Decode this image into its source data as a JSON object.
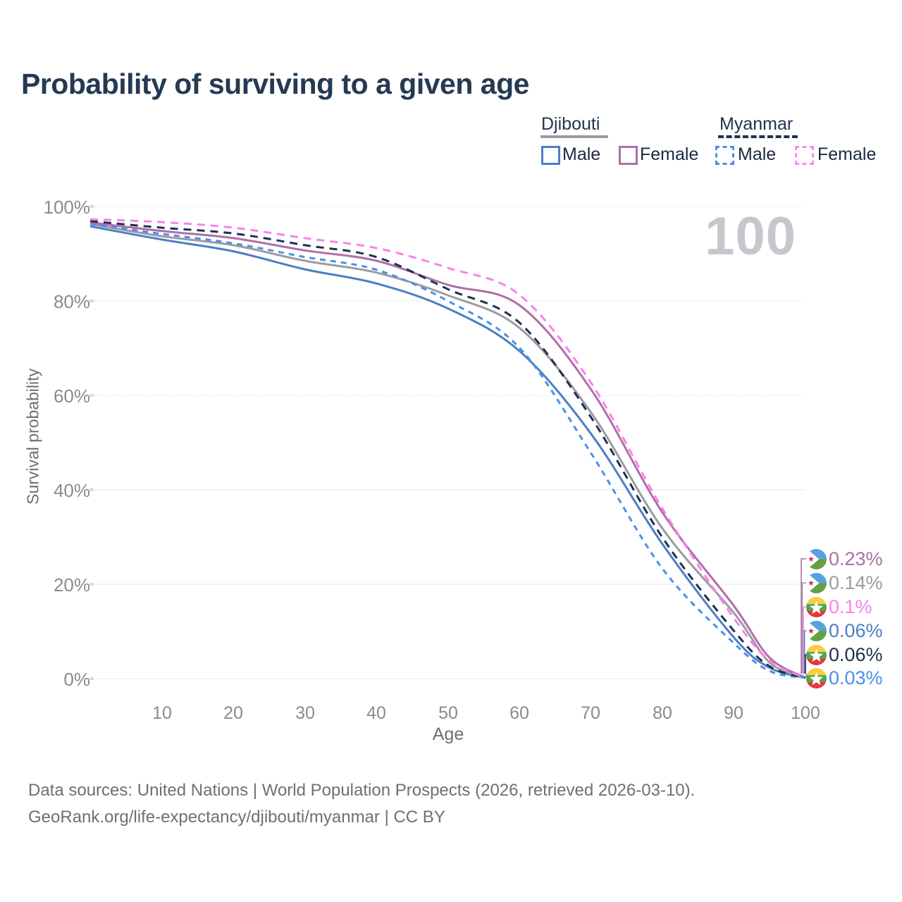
{
  "title": "Probability of surviving to a given age",
  "legend": {
    "groups": [
      {
        "country": "Djibouti",
        "line_style": "solid",
        "underline_color": "#9b9ba1",
        "items": [
          {
            "label": "Male",
            "line_style": "solid",
            "color": "#4d7ec5"
          },
          {
            "label": "Female",
            "line_style": "solid",
            "color": "#ae6fa8"
          }
        ]
      },
      {
        "country": "Myanmar",
        "line_style": "dashed",
        "underline_color": "#20304c",
        "items": [
          {
            "label": "Male",
            "line_style": "dashed",
            "color": "#4a90e8"
          },
          {
            "label": "Female",
            "line_style": "dashed",
            "color": "#fb8df0"
          }
        ]
      }
    ]
  },
  "axes": {
    "y_label": "Survival probability",
    "y_ticks": [
      "100%",
      "80%",
      "60%",
      "40%",
      "20%",
      "0%"
    ],
    "y_tick_values": [
      100,
      80,
      60,
      40,
      20,
      0
    ],
    "x_ticks": [
      "10",
      "20",
      "30",
      "40",
      "50",
      "60",
      "70",
      "80",
      "90",
      "100"
    ],
    "x_tick_values": [
      10,
      20,
      30,
      40,
      50,
      60,
      70,
      80,
      90,
      100
    ],
    "x_label": "Age"
  },
  "watermark": "100",
  "chart_data": {
    "type": "line",
    "title": "Probability of surviving to a given age",
    "xlabel": "Age",
    "ylabel": "Survival probability",
    "xlim": [
      0,
      100
    ],
    "ylim_percent": [
      0,
      100
    ],
    "grid": "horizontal",
    "x": [
      0,
      10,
      20,
      30,
      40,
      50,
      60,
      70,
      80,
      90,
      95,
      100
    ],
    "series": [
      {
        "name": "Djibouti Male",
        "country": "Djibouti",
        "sex": "Male",
        "line_style": "solid",
        "color": "#4d7ec5",
        "values_percent": [
          95.8,
          93.0,
          90.5,
          86.7,
          83.7,
          78.4,
          69.4,
          51.9,
          28.5,
          8.7,
          2.3,
          0.06
        ]
      },
      {
        "name": "Djibouti",
        "country": "Djibouti",
        "sex": "Both sexes",
        "line_style": "solid",
        "color": "#9b9ba1",
        "values_percent": [
          96.3,
          93.7,
          91.8,
          88.5,
          86.0,
          81.2,
          74.3,
          56.4,
          31.8,
          13.9,
          3.4,
          0.14
        ]
      },
      {
        "name": "Djibouti Female",
        "country": "Djibouti",
        "sex": "Female",
        "line_style": "solid",
        "color": "#ae6fa8",
        "values_percent": [
          96.6,
          94.8,
          93.3,
          90.7,
          88.5,
          83.4,
          79.1,
          61.3,
          35.2,
          15.4,
          4.4,
          0.23
        ]
      },
      {
        "name": "Myanmar Male",
        "country": "Myanmar",
        "sex": "Male",
        "line_style": "dashed",
        "color": "#4a90e8",
        "values_percent": [
          96.3,
          94.2,
          92.2,
          89.3,
          86.6,
          80.0,
          70.1,
          47.8,
          23.3,
          7.5,
          1.6,
          0.03
        ]
      },
      {
        "name": "Myanmar",
        "country": "Myanmar",
        "sex": "Both sexes",
        "line_style": "dashed",
        "color": "#20304c",
        "values_percent": [
          96.9,
          95.5,
          94.3,
          91.8,
          89.3,
          82.5,
          75.4,
          55.4,
          29.9,
          10.1,
          2.6,
          0.06
        ]
      },
      {
        "name": "Myanmar Female",
        "country": "Myanmar",
        "sex": "Female",
        "line_style": "dashed",
        "color": "#fb80ec",
        "values_percent": [
          97.3,
          96.7,
          95.5,
          93.3,
          91.2,
          87.0,
          81.3,
          62.7,
          36.0,
          12.8,
          3.8,
          0.1
        ]
      }
    ]
  },
  "end_labels": [
    {
      "value": "0.23%",
      "color": "#a9719f",
      "flag": "djibouti",
      "series": "Djibouti Female"
    },
    {
      "value": "0.14%",
      "color": "#9b9ba1",
      "flag": "djibouti",
      "series": "Djibouti"
    },
    {
      "value": "0.1%",
      "color": "#fb80ec",
      "flag": "myanmar",
      "series": "Myanmar Female"
    },
    {
      "value": "0.06%",
      "color": "#4d7ec5",
      "flag": "djibouti",
      "series": "Djibouti Male"
    },
    {
      "value": "0.06%",
      "color": "#20304c",
      "flag": "myanmar",
      "series": "Myanmar"
    },
    {
      "value": "0.03%",
      "color": "#4a90e8",
      "flag": "myanmar",
      "series": "Myanmar Male"
    }
  ],
  "footer": {
    "line1": "Data sources: United Nations | World Population Prospects (2026, retrieved 2026-03-10).",
    "line2": "GeoRank.org/life-expectancy/djibouti/myanmar | CC BY"
  }
}
